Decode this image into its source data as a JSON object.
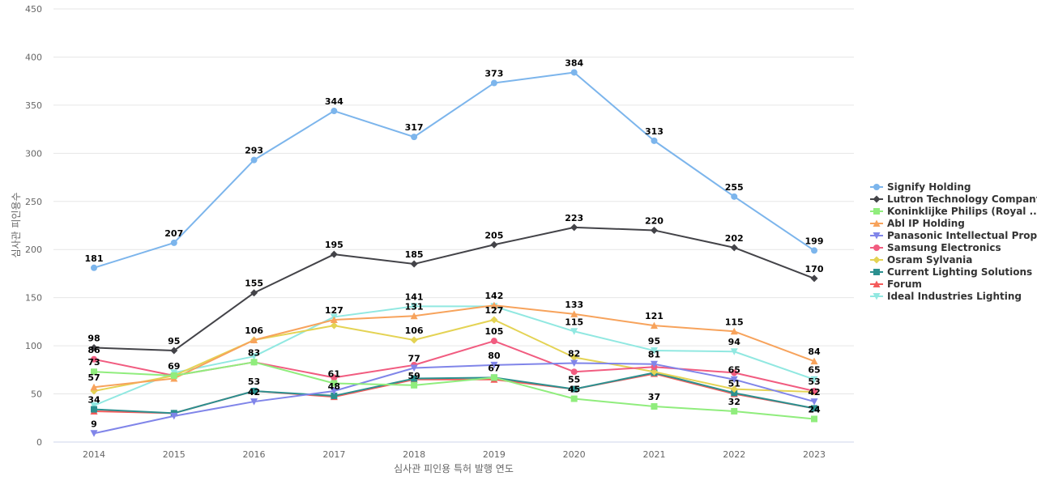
{
  "chart_data": {
    "type": "line",
    "title": "",
    "xlabel": "심사관 피인용 특허 발행 연도",
    "ylabel": "심사관 피인용수",
    "ylim": [
      0,
      450
    ],
    "yticks": [
      0,
      50,
      100,
      150,
      200,
      250,
      300,
      350,
      400,
      450
    ],
    "grid": true,
    "legend_position": "right",
    "categories": [
      "2014",
      "2015",
      "2016",
      "2017",
      "2018",
      "2019",
      "2020",
      "2021",
      "2022",
      "2023"
    ],
    "series": [
      {
        "name": "Signify Holding",
        "color": "#7cb5ec",
        "marker": "circle",
        "values": [
          181,
          207,
          293,
          344,
          317,
          373,
          384,
          313,
          255,
          199
        ],
        "labels": [
          181,
          207,
          293,
          344,
          317,
          373,
          384,
          313,
          255,
          199
        ]
      },
      {
        "name": "Lutron Technology Company",
        "color": "#434348",
        "marker": "diamond",
        "values": [
          98,
          95,
          155,
          195,
          185,
          205,
          223,
          220,
          202,
          170
        ],
        "labels": [
          98,
          95,
          155,
          195,
          185,
          205,
          223,
          220,
          202,
          170
        ]
      },
      {
        "name": "Koninklijke Philips (Royal ...",
        "color": "#90ed7d",
        "marker": "square",
        "values": [
          73,
          69,
          83,
          61,
          59,
          67,
          45,
          37,
          32,
          24
        ],
        "labels": [
          73,
          69,
          83,
          61,
          59,
          67,
          45,
          37,
          32,
          24
        ]
      },
      {
        "name": "Abl IP Holding",
        "color": "#f7a35c",
        "marker": "triangle",
        "values": [
          57,
          66,
          106,
          127,
          131,
          142,
          133,
          121,
          115,
          84
        ],
        "labels": [
          57,
          null,
          106,
          127,
          131,
          142,
          133,
          121,
          115,
          84
        ]
      },
      {
        "name": "Panasonic Intellectual Prop...",
        "color": "#8085e9",
        "marker": "triangle-down",
        "values": [
          9,
          27,
          42,
          53,
          77,
          80,
          82,
          81,
          65,
          42
        ],
        "labels": [
          9,
          null,
          42,
          null,
          77,
          80,
          82,
          81,
          65,
          42
        ]
      },
      {
        "name": "Samsung Electronics",
        "color": "#f15c80",
        "marker": "circle",
        "values": [
          86,
          69,
          83,
          67,
          80,
          105,
          73,
          78,
          72,
          53
        ],
        "labels": [
          86,
          null,
          null,
          null,
          null,
          105,
          null,
          null,
          null,
          53
        ]
      },
      {
        "name": "Osram Sylvania",
        "color": "#e4d354",
        "marker": "diamond",
        "values": [
          53,
          69,
          106,
          121,
          106,
          127,
          88,
          73,
          55,
          52
        ],
        "labels": [
          null,
          null,
          null,
          null,
          106,
          127,
          null,
          null,
          null,
          null
        ]
      },
      {
        "name": "Current Lighting Solutions",
        "color": "#2b908f",
        "marker": "square",
        "values": [
          34,
          30,
          53,
          48,
          66,
          67,
          55,
          72,
          51,
          35
        ],
        "labels": [
          34,
          null,
          53,
          48,
          null,
          null,
          55,
          null,
          51,
          null
        ]
      },
      {
        "name": "Forum",
        "color": "#f45b5b",
        "marker": "triangle",
        "values": [
          32,
          30,
          53,
          47,
          65,
          65,
          55,
          71,
          50,
          35
        ],
        "labels": [
          null,
          null,
          null,
          null,
          null,
          null,
          null,
          null,
          null,
          null
        ]
      },
      {
        "name": "Ideal Industries Lighting",
        "color": "#91e8e1",
        "marker": "triangle-down",
        "values": [
          38,
          72,
          89,
          130,
          141,
          141,
          115,
          95,
          94,
          65
        ],
        "labels": [
          null,
          null,
          null,
          null,
          141,
          null,
          115,
          95,
          94,
          65
        ]
      }
    ]
  }
}
